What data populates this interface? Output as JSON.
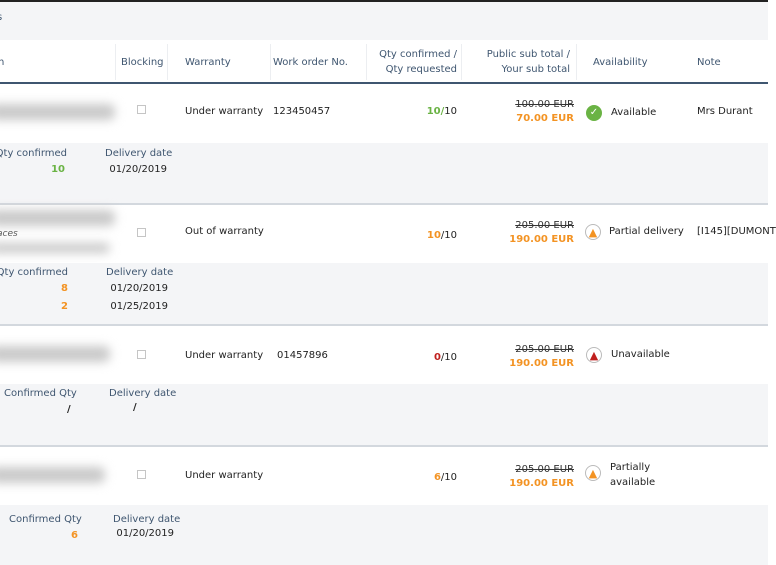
{
  "topbar": {
    "fragment": "s"
  },
  "header": {
    "col_partial": "n",
    "blocking": "Blocking",
    "warranty": "Warranty",
    "work_order": "Work order No.",
    "qty1": "Qty confirmed /",
    "qty2": "Qty requested",
    "price1": "Public sub total /",
    "price2": "Your sub total",
    "availability": "Availability",
    "note": "Note"
  },
  "colors": {
    "green": "#6ab344",
    "orange": "#f39323",
    "red": "#c0201e",
    "label": "#3f5670"
  },
  "rows": [
    {
      "warranty": "Under warranty",
      "work_order": "123450457",
      "qty_conf": "10",
      "qty_req": "/10",
      "public": "100.00 EUR",
      "yours": "70.00 EUR",
      "availability": "Available",
      "icon": "check-circle-icon",
      "note": "Mrs Durant",
      "detail": {
        "qty_label": "Qty confirmed",
        "date_label": "Delivery date",
        "lines": [
          {
            "qty": "10",
            "date": "01/20/2019"
          }
        ]
      }
    },
    {
      "warranty": "Out of warranty",
      "work_order": "",
      "sub": "aces",
      "qty_conf": "10",
      "qty_req": "/10",
      "public": "205.00 EUR",
      "yours": "190.00 EUR",
      "availability": "Partial delivery",
      "icon": "warning-icon",
      "note": "[I145][DUMONT",
      "detail": {
        "qty_label": "Qty confirmed",
        "date_label": "Delivery date",
        "lines": [
          {
            "qty": "8",
            "date": "01/20/2019"
          },
          {
            "qty": "2",
            "date": "01/25/2019"
          }
        ]
      }
    },
    {
      "warranty": "Under warranty",
      "work_order": "01457896",
      "qty_conf": "0",
      "qty_req": "/10",
      "public": "205.00 EUR",
      "yours": "190.00 EUR",
      "availability": "Unavailable",
      "icon": "error-icon",
      "note": "",
      "detail": {
        "qty_label": "Confirmed Qty",
        "date_label": "Delivery date",
        "lines": [
          {
            "qty": "/",
            "date": "/"
          }
        ]
      }
    },
    {
      "warranty": "Under warranty",
      "work_order": "",
      "qty_conf": "6",
      "qty_req": "/10",
      "public": "205.00 EUR",
      "yours": "190.00 EUR",
      "availability1": "Partially",
      "availability2": "available",
      "icon": "warning-icon",
      "note": "",
      "detail": {
        "qty_label": "Confirmed Qty",
        "date_label": "Delivery date",
        "lines": [
          {
            "qty": "6",
            "date": "01/20/2019"
          }
        ]
      }
    }
  ]
}
